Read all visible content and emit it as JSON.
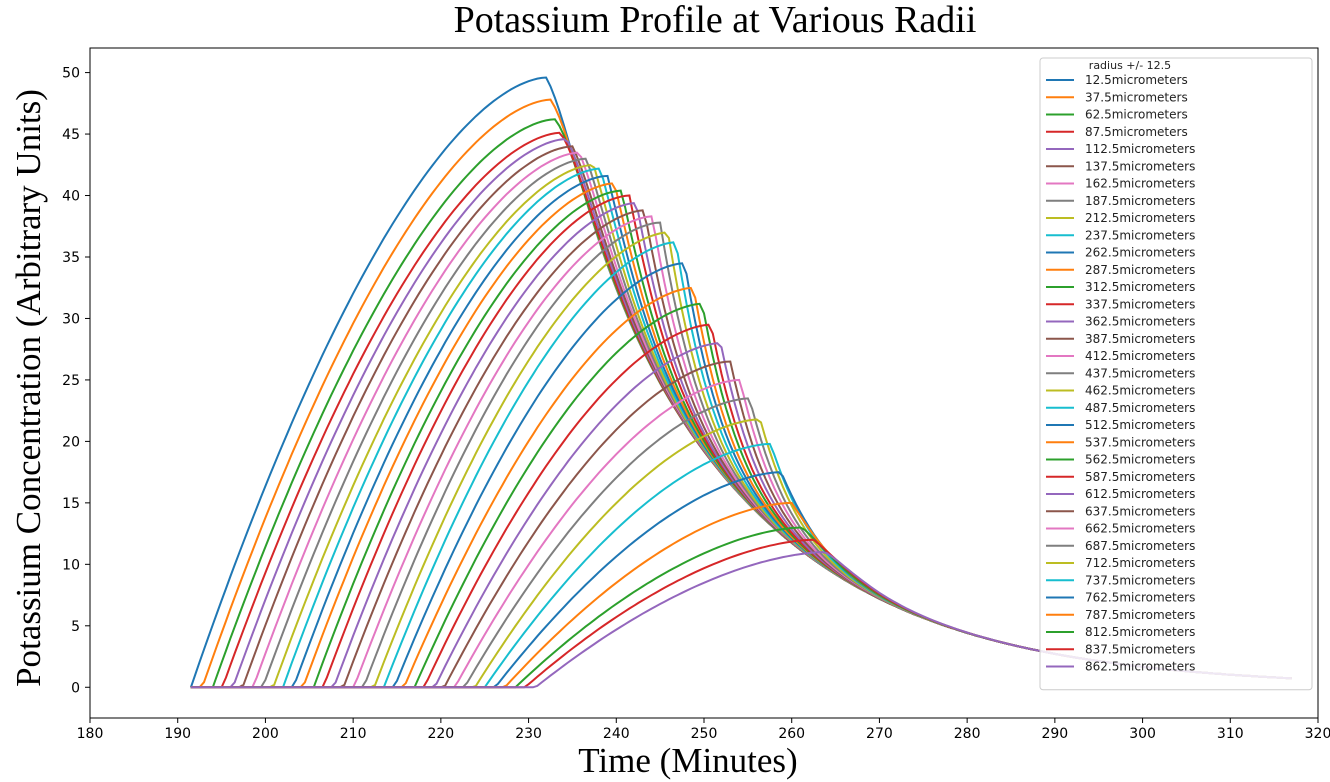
{
  "chart_data": {
    "type": "line",
    "title": "Potassium Profile at Various Radii",
    "xlabel": "Time (Minutes)",
    "ylabel": "Potassium Concentration (Arbitrary Units)",
    "xlim": [
      180,
      320
    ],
    "ylim": [
      -2.5,
      52
    ],
    "xticks": [
      180,
      190,
      200,
      210,
      220,
      230,
      240,
      250,
      260,
      270,
      280,
      290,
      300,
      310,
      320
    ],
    "yticks": [
      0,
      5,
      10,
      15,
      20,
      25,
      30,
      35,
      40,
      45,
      50
    ],
    "legend": {
      "title": "radius +/- 12.5",
      "placement": "top-right"
    },
    "x_range_of_data": [
      191.5,
      317
    ],
    "series": [
      {
        "name": "12.5micrometers",
        "color": "#1f77b4",
        "onset": 191.5,
        "peak_time": 232.0,
        "peak_value": 49.6
      },
      {
        "name": "37.5micrometers",
        "color": "#ff7f0e",
        "onset": 192.8,
        "peak_time": 232.5,
        "peak_value": 47.8
      },
      {
        "name": "62.5micrometers",
        "color": "#2ca02c",
        "onset": 194.0,
        "peak_time": 233.0,
        "peak_value": 46.2
      },
      {
        "name": "87.5micrometers",
        "color": "#d62728",
        "onset": 195.1,
        "peak_time": 233.6,
        "peak_value": 45.1
      },
      {
        "name": "112.5micrometers",
        "color": "#9467bd",
        "onset": 196.3,
        "peak_time": 234.3,
        "peak_value": 44.6
      },
      {
        "name": "137.5micrometers",
        "color": "#8c564b",
        "onset": 197.4,
        "peak_time": 235.0,
        "peak_value": 44.0
      },
      {
        "name": "162.5micrometers",
        "color": "#e377c2",
        "onset": 198.6,
        "peak_time": 235.8,
        "peak_value": 43.5
      },
      {
        "name": "187.5micrometers",
        "color": "#7f7f7f",
        "onset": 199.7,
        "peak_time": 236.6,
        "peak_value": 43.0
      },
      {
        "name": "212.5micrometers",
        "color": "#bcbd22",
        "onset": 200.9,
        "peak_time": 237.4,
        "peak_value": 42.5
      },
      {
        "name": "237.5micrometers",
        "color": "#17becf",
        "onset": 202.0,
        "peak_time": 238.2,
        "peak_value": 42.2
      },
      {
        "name": "262.5micrometers",
        "color": "#1f77b4",
        "onset": 203.2,
        "peak_time": 239.0,
        "peak_value": 41.6
      },
      {
        "name": "287.5micrometers",
        "color": "#ff7f0e",
        "onset": 204.3,
        "peak_time": 239.8,
        "peak_value": 41.0
      },
      {
        "name": "312.5micrometers",
        "color": "#2ca02c",
        "onset": 205.5,
        "peak_time": 240.6,
        "peak_value": 40.4
      },
      {
        "name": "337.5micrometers",
        "color": "#d62728",
        "onset": 206.6,
        "peak_time": 241.5,
        "peak_value": 40.0
      },
      {
        "name": "362.5micrometers",
        "color": "#9467bd",
        "onset": 207.8,
        "peak_time": 242.3,
        "peak_value": 39.4
      },
      {
        "name": "387.5micrometers",
        "color": "#8c564b",
        "onset": 208.9,
        "peak_time": 243.2,
        "peak_value": 38.8
      },
      {
        "name": "412.5micrometers",
        "color": "#e377c2",
        "onset": 210.1,
        "peak_time": 244.1,
        "peak_value": 38.3
      },
      {
        "name": "437.5micrometers",
        "color": "#7f7f7f",
        "onset": 211.2,
        "peak_time": 245.0,
        "peak_value": 37.8
      },
      {
        "name": "462.5micrometers",
        "color": "#bcbd22",
        "onset": 212.4,
        "peak_time": 245.9,
        "peak_value": 37.0
      },
      {
        "name": "487.5micrometers",
        "color": "#17becf",
        "onset": 213.5,
        "peak_time": 246.8,
        "peak_value": 36.2
      },
      {
        "name": "512.5micrometers",
        "color": "#1f77b4",
        "onset": 214.7,
        "peak_time": 247.8,
        "peak_value": 34.5
      },
      {
        "name": "537.5micrometers",
        "color": "#ff7f0e",
        "onset": 215.8,
        "peak_time": 248.8,
        "peak_value": 32.5
      },
      {
        "name": "562.5micrometers",
        "color": "#2ca02c",
        "onset": 217.0,
        "peak_time": 249.8,
        "peak_value": 31.2
      },
      {
        "name": "587.5micrometers",
        "color": "#d62728",
        "onset": 218.1,
        "peak_time": 250.8,
        "peak_value": 29.5
      },
      {
        "name": "612.5micrometers",
        "color": "#9467bd",
        "onset": 219.3,
        "peak_time": 251.9,
        "peak_value": 28.0
      },
      {
        "name": "637.5micrometers",
        "color": "#8c564b",
        "onset": 220.4,
        "peak_time": 253.0,
        "peak_value": 26.5
      },
      {
        "name": "662.5micrometers",
        "color": "#e377c2",
        "onset": 221.6,
        "peak_time": 254.1,
        "peak_value": 25.0
      },
      {
        "name": "687.5micrometers",
        "color": "#7f7f7f",
        "onset": 222.7,
        "peak_time": 255.2,
        "peak_value": 23.5
      },
      {
        "name": "712.5micrometers",
        "color": "#bcbd22",
        "onset": 223.9,
        "peak_time": 256.4,
        "peak_value": 21.8
      },
      {
        "name": "737.5micrometers",
        "color": "#17becf",
        "onset": 225.0,
        "peak_time": 257.6,
        "peak_value": 19.8
      },
      {
        "name": "762.5micrometers",
        "color": "#1f77b4",
        "onset": 226.2,
        "peak_time": 258.8,
        "peak_value": 17.5
      },
      {
        "name": "787.5micrometers",
        "color": "#ff7f0e",
        "onset": 227.3,
        "peak_time": 260.0,
        "peak_value": 15.0
      },
      {
        "name": "812.5micrometers",
        "color": "#2ca02c",
        "onset": 228.5,
        "peak_time": 261.2,
        "peak_value": 13.0
      },
      {
        "name": "837.5micrometers",
        "color": "#d62728",
        "onset": 229.6,
        "peak_time": 262.5,
        "peak_value": 12.0
      },
      {
        "name": "862.5micrometers",
        "color": "#9467bd",
        "onset": 230.8,
        "peak_time": 263.8,
        "peak_value": 11.0
      }
    ]
  }
}
